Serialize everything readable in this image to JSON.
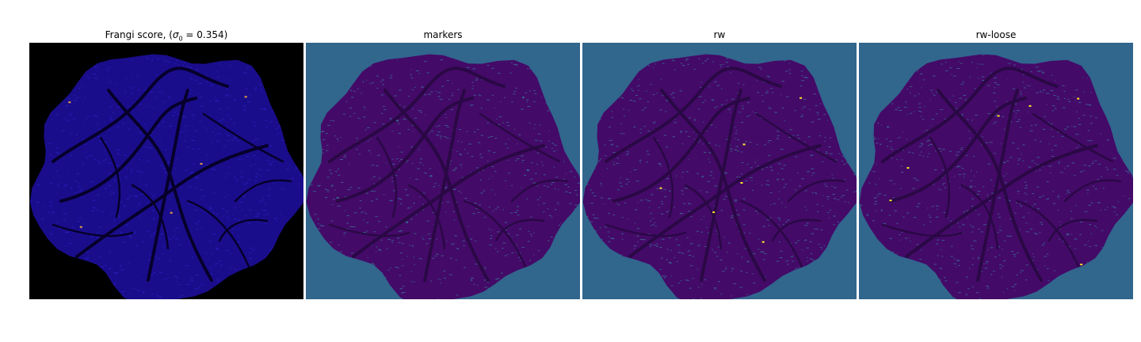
{
  "panels": [
    {
      "title_prefix": "Frangi score, (",
      "title_sigma": "σ",
      "title_sub": "0",
      "title_suffix": " = 0.354)",
      "background": "#000000",
      "fill": "#1a0d8c",
      "vessel": "#06002a",
      "speck": "#e8a040"
    },
    {
      "title": "markers",
      "background": "#31668d",
      "fill": "#440a68",
      "vessel": "#2a0845",
      "speck": "#31668d"
    },
    {
      "title": "rw",
      "background": "#31668d",
      "fill": "#440a68",
      "vessel": "#2a0845",
      "speck": "#fde725"
    },
    {
      "title": "rw-loose",
      "background": "#31668d",
      "fill": "#440a68",
      "vessel": "#2a0845",
      "speck": "#fde725"
    }
  ]
}
